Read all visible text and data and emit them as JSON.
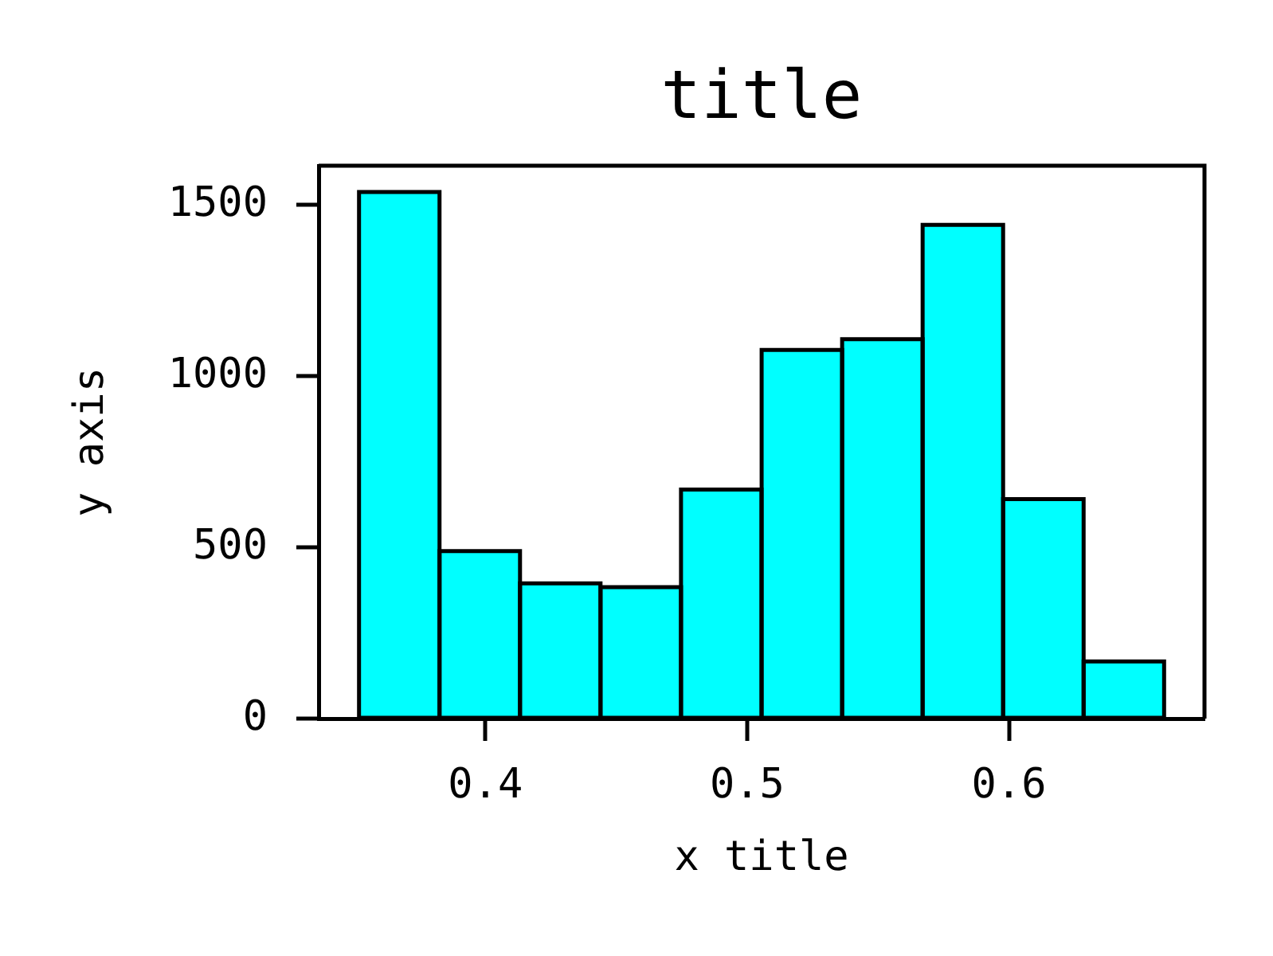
{
  "chart_data": {
    "type": "histogram",
    "title": "title",
    "xlabel": "x title",
    "ylabel": "y axis",
    "bins": [
      0.3517,
      0.3825,
      0.4132,
      0.444,
      0.4747,
      0.5055,
      0.5363,
      0.567,
      0.5978,
      0.6285,
      0.6593
    ],
    "values": [
      1538,
      489,
      395,
      384,
      669,
      1077,
      1108,
      1442,
      641,
      167
    ],
    "color": "#00ffff",
    "xlim": [
      0.3363,
      0.6747
    ],
    "xticks": [
      0.4,
      0.5,
      0.6
    ],
    "ylim": [
      0,
      1615
    ],
    "yticks": [
      0,
      500,
      1000,
      1500
    ]
  }
}
